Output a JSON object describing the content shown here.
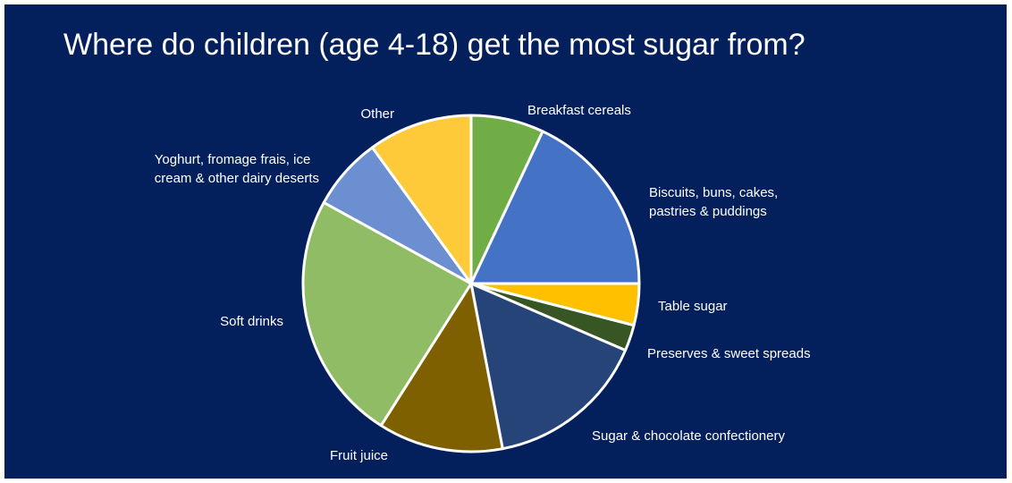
{
  "chart_data": {
    "type": "pie",
    "title": "Where do children (age 4-18) get the most sugar from?",
    "start_angle_deg": 0,
    "direction": "clockwise",
    "slices": [
      {
        "label": "Breakfast cereals",
        "value": 7,
        "color": "#70ad47"
      },
      {
        "label": "Biscuits, buns, cakes,\npastries & puddings",
        "value": 18,
        "color": "#4472c4"
      },
      {
        "label": "Table sugar",
        "value": 4,
        "color": "#ffc000"
      },
      {
        "label": "Preserves & sweet spreads",
        "value": 2.5,
        "color": "#375623"
      },
      {
        "label": "Sugar & chocolate confectionery",
        "value": 15.5,
        "color": "#264478"
      },
      {
        "label": "Fruit juice",
        "value": 12,
        "color": "#7f6000"
      },
      {
        "label": "Soft drinks",
        "value": 24,
        "color": "#8fbc64"
      },
      {
        "label": "Yoghurt, fromage frais, ice\ncream & other dairy deserts",
        "value": 7,
        "color": "#6b8fd0"
      },
      {
        "label": "Other",
        "value": 10,
        "color": "#ffca3a"
      }
    ],
    "legend": "none",
    "slice_border_color": "#ffffff"
  }
}
